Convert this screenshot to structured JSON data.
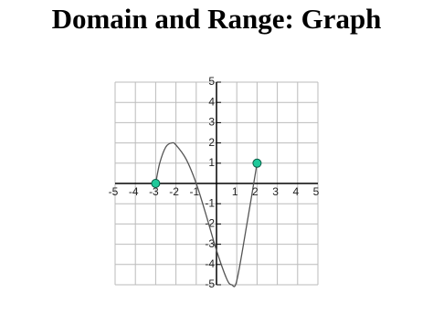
{
  "chart_data": {
    "type": "line",
    "title": "Domain and Range: Graph",
    "x": [
      -3,
      -2.8,
      -2.5,
      -2.2,
      -2,
      -1.5,
      -1,
      -0.5,
      0,
      0.5,
      0.75,
      1,
      1.5,
      2
    ],
    "values": [
      0,
      1,
      1.8,
      2,
      1.9,
      1.2,
      0,
      -1.6,
      -3.3,
      -4.7,
      -5,
      -4.8,
      -2,
      1
    ],
    "color": "#555555",
    "endpoint_color": "#1fc99a",
    "xlim": [
      -5,
      5
    ],
    "ylim": [
      -5,
      5
    ],
    "xticks": [
      -5,
      -4,
      -3,
      -2,
      -1,
      1,
      2,
      3,
      4,
      5
    ],
    "yticks": [
      -5,
      -4,
      -3,
      -2,
      -1,
      1,
      2,
      3,
      4,
      5
    ],
    "grid": true
  }
}
